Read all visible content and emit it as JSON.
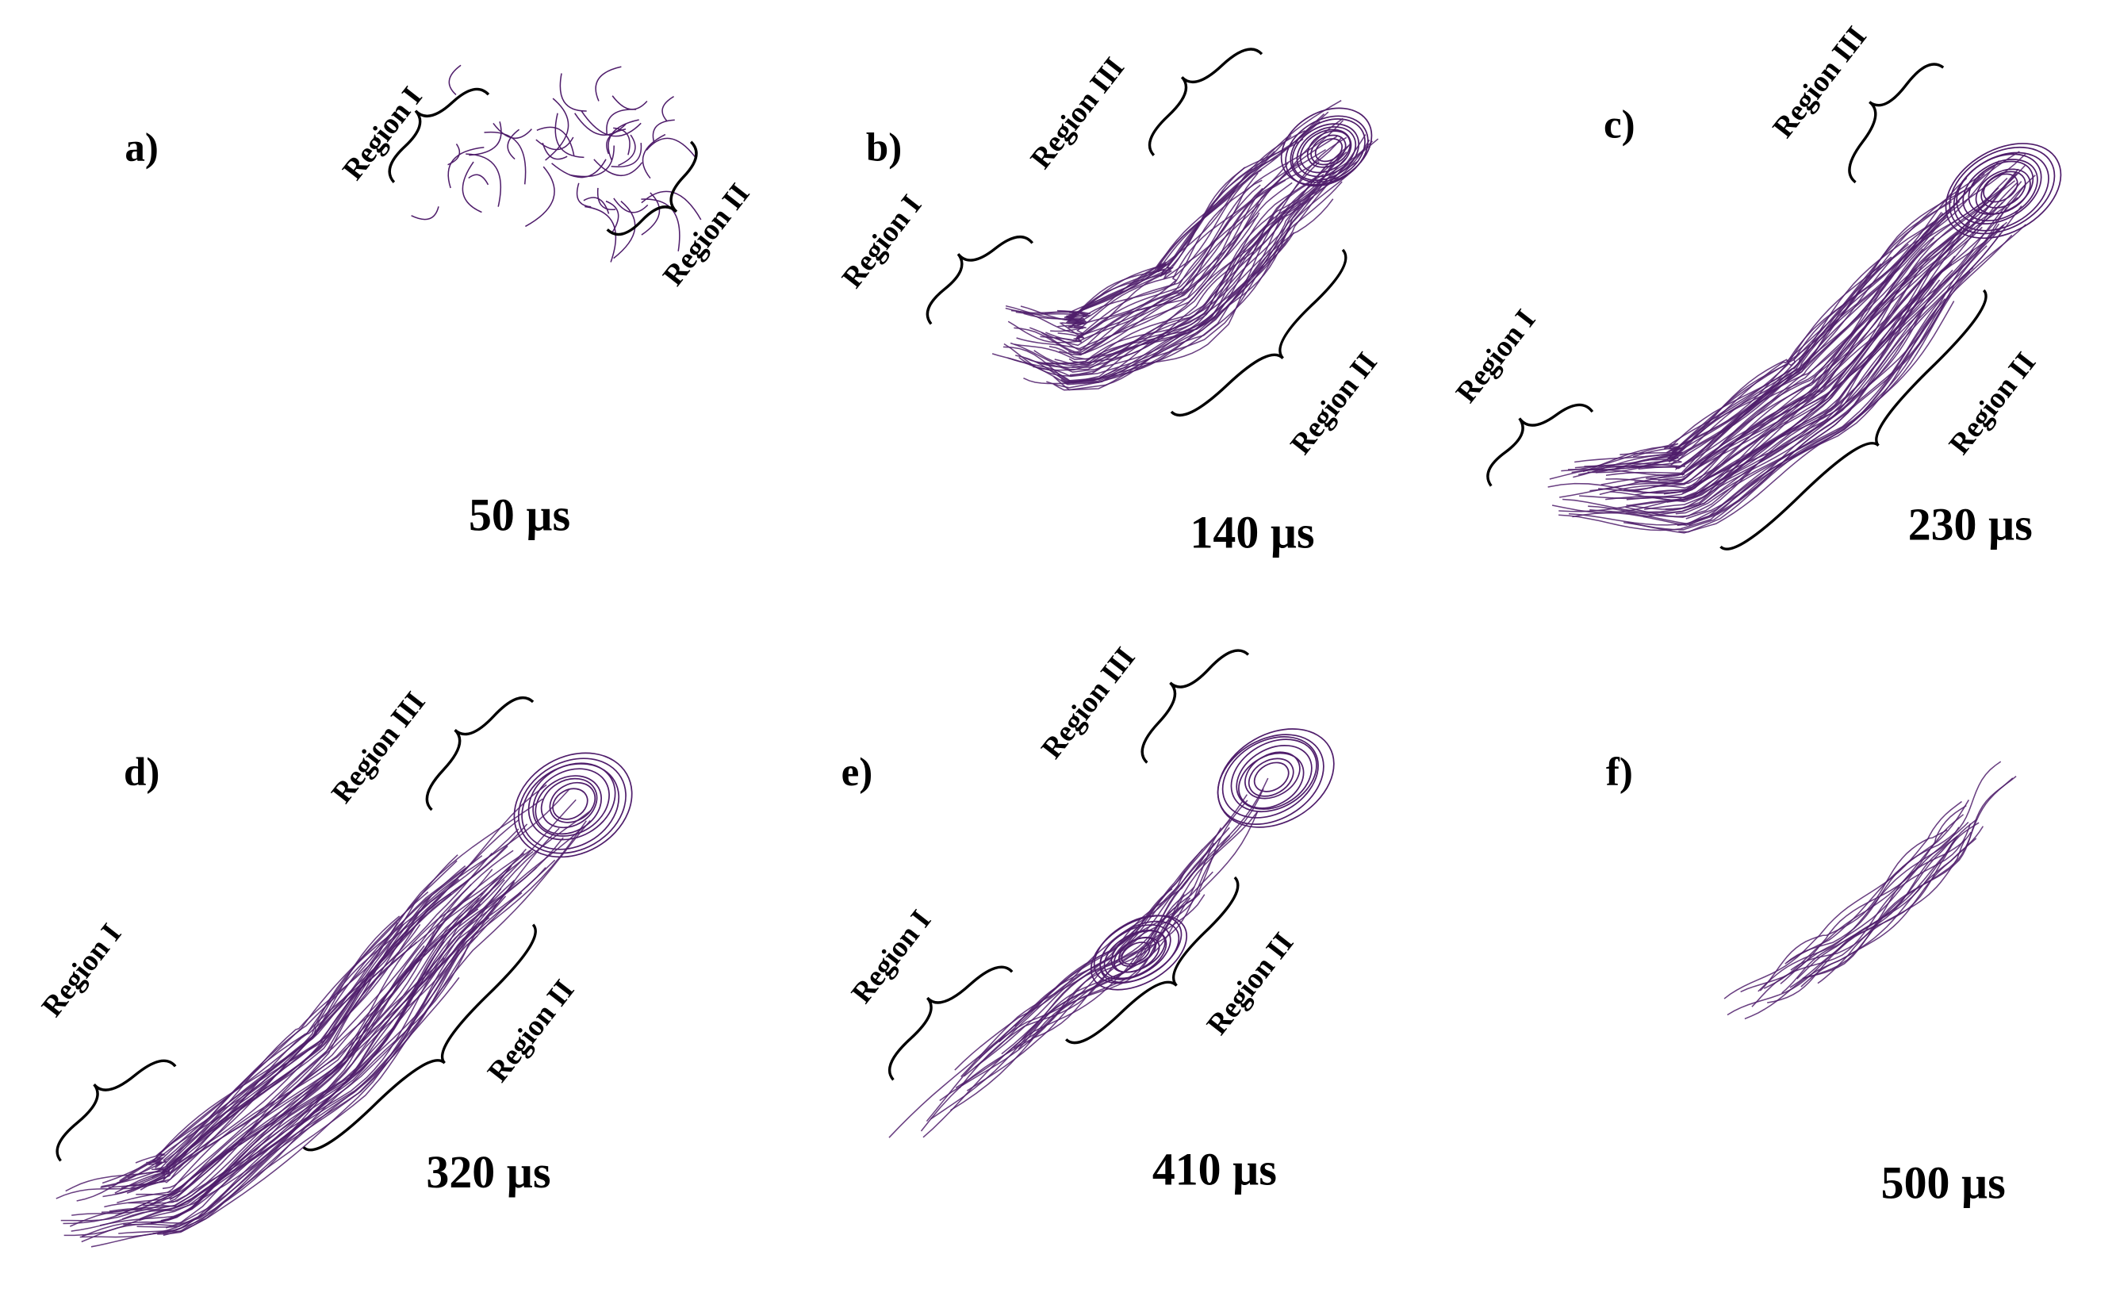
{
  "panels": [
    {
      "label": "a)",
      "time": "50 µs",
      "regions": [
        "Region I",
        "Region II"
      ]
    },
    {
      "label": "b)",
      "time": "140 µs",
      "regions": [
        "Region III",
        "Region I",
        "Region II"
      ]
    },
    {
      "label": "c)",
      "time": "230 µs",
      "regions": [
        "Region III",
        "Region I",
        "Region II"
      ]
    },
    {
      "label": "d)",
      "time": "320 µs",
      "regions": [
        "Region III",
        "Region I",
        "Region II"
      ]
    },
    {
      "label": "e)",
      "time": "410 µs",
      "regions": [
        "Region III",
        "Region I",
        "Region II"
      ]
    },
    {
      "label": "f)",
      "time": "500 µs",
      "regions": []
    }
  ]
}
